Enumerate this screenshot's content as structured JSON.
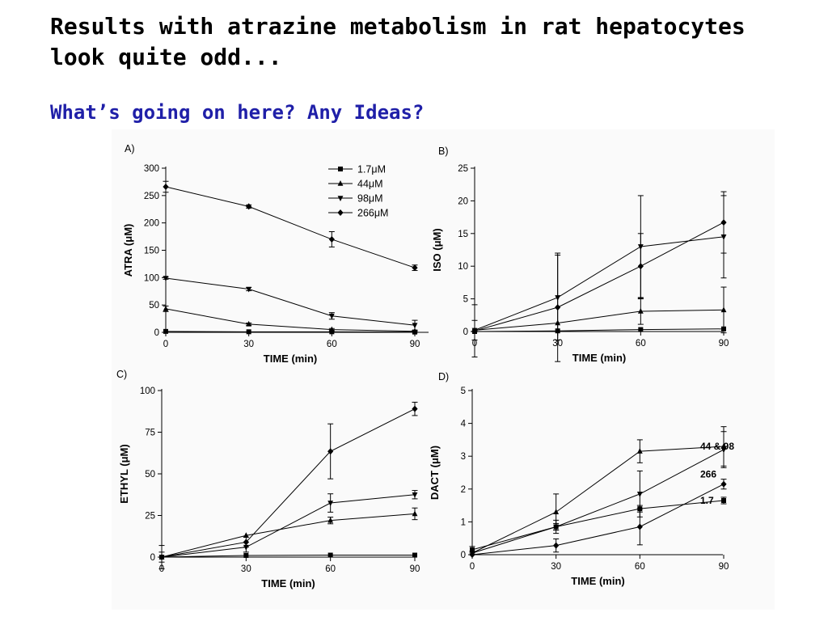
{
  "slide": {
    "title": "Results with atrazine metabolism in rat hepatocytes look quite odd...",
    "subtitle": "What’s going on here? Any Ideas?",
    "subtitle_color": "#1f1fa8"
  },
  "chart_data": [
    {
      "panel": "A)",
      "type": "line",
      "xlabel": "TIME (min)",
      "ylabel": "ATRA (μM)",
      "xlim": [
        0,
        90
      ],
      "ylim": [
        0,
        300
      ],
      "x_ticks": [
        0,
        30,
        60,
        90
      ],
      "y_ticks": [
        0,
        50,
        100,
        150,
        200,
        250,
        300
      ],
      "legend": "top-right",
      "x": [
        0,
        30,
        60,
        90
      ],
      "series": [
        {
          "name": "1.7μM",
          "marker": "square",
          "values": [
            1.7,
            1,
            1,
            0.5
          ],
          "errors": [
            0,
            0,
            0,
            0
          ]
        },
        {
          "name": "44μM",
          "marker": "triangle-up",
          "values": [
            43,
            15,
            5,
            2
          ],
          "errors": [
            5,
            2,
            2,
            1
          ]
        },
        {
          "name": "98μM",
          "marker": "triangle-down",
          "values": [
            99,
            79,
            30,
            13
          ],
          "errors": [
            2,
            3,
            6,
            9
          ]
        },
        {
          "name": "266μM",
          "marker": "diamond",
          "values": [
            266,
            230,
            170,
            118
          ],
          "errors": [
            10,
            3,
            14,
            5
          ]
        }
      ]
    },
    {
      "panel": "B)",
      "type": "line",
      "xlabel": "TIME (min)",
      "ylabel": "ISO (μM)",
      "xlim": [
        0,
        90
      ],
      "ylim": [
        0,
        25
      ],
      "x_ticks": [
        0,
        30,
        60,
        90
      ],
      "y_ticks": [
        0,
        5,
        10,
        15,
        20,
        25
      ],
      "x": [
        0,
        30,
        60,
        90
      ],
      "series": [
        {
          "marker": "square",
          "values": [
            0,
            0.1,
            0.3,
            0.4
          ],
          "errors": [
            0,
            0,
            0,
            0
          ]
        },
        {
          "marker": "triangle-up",
          "values": [
            0.2,
            1.3,
            3.1,
            3.3
          ],
          "errors": [
            0,
            0,
            2,
            3.5
          ]
        },
        {
          "marker": "triangle-down",
          "values": [
            0.2,
            5.2,
            13,
            14.5
          ],
          "errors": [
            1.5,
            6.5,
            7.8,
            6.3
          ]
        },
        {
          "marker": "diamond",
          "values": [
            0.1,
            3.7,
            10,
            16.7
          ],
          "errors": [
            4,
            8.3,
            5,
            4.7
          ]
        }
      ]
    },
    {
      "panel": "C)",
      "type": "line",
      "xlabel": "TIME (min)",
      "ylabel": "ETHYL (μM)",
      "xlim": [
        0,
        90
      ],
      "ylim": [
        0,
        100
      ],
      "x_ticks": [
        0,
        30,
        60,
        90
      ],
      "y_ticks": [
        0,
        25,
        50,
        75,
        100
      ],
      "x": [
        0,
        30,
        60,
        90
      ],
      "series": [
        {
          "marker": "square",
          "values": [
            0,
            1,
            1.2,
            1.2
          ],
          "errors": [
            0,
            0,
            0,
            0
          ]
        },
        {
          "marker": "triangle-up",
          "values": [
            0,
            13,
            22,
            26
          ],
          "errors": [
            0,
            0,
            2,
            3.5
          ]
        },
        {
          "marker": "triangle-down",
          "values": [
            0,
            6,
            32.5,
            37.5
          ],
          "errors": [
            7,
            3,
            5.5,
            2.5
          ]
        },
        {
          "marker": "diamond",
          "values": [
            0,
            9,
            63.5,
            89
          ],
          "errors": [
            3,
            3,
            16.5,
            4
          ]
        }
      ]
    },
    {
      "panel": "D)",
      "type": "line",
      "xlabel": "TIME (min)",
      "ylabel": "DACT (μM)",
      "xlim": [
        0,
        90
      ],
      "ylim": [
        0,
        5
      ],
      "x_ticks": [
        0,
        30,
        60,
        90
      ],
      "y_ticks": [
        0,
        1,
        2,
        3,
        4,
        5
      ],
      "x": [
        0,
        30,
        60,
        90
      ],
      "series": [
        {
          "marker": "square",
          "values": [
            0.15,
            0.85,
            1.4,
            1.65
          ],
          "errors": [
            0.1,
            0.1,
            0.1,
            0.1
          ]
        },
        {
          "marker": "triangle-up",
          "values": [
            0.05,
            1.3,
            3.15,
            3.3
          ],
          "errors": [
            0,
            0.55,
            0.35,
            0.6
          ]
        },
        {
          "marker": "triangle-down",
          "values": [
            0.05,
            0.85,
            1.85,
            3.2
          ],
          "errors": [
            0.05,
            0.2,
            0.7,
            0.55
          ]
        },
        {
          "marker": "diamond",
          "values": [
            0,
            0.28,
            0.85,
            2.15
          ],
          "errors": [
            0,
            0.2,
            0.55,
            0.15
          ]
        }
      ],
      "annotations": [
        {
          "text": "44 & 98",
          "y": 3.3
        },
        {
          "text": "266",
          "y": 2.45
        },
        {
          "text": "1.7",
          "y": 1.65
        }
      ]
    }
  ]
}
